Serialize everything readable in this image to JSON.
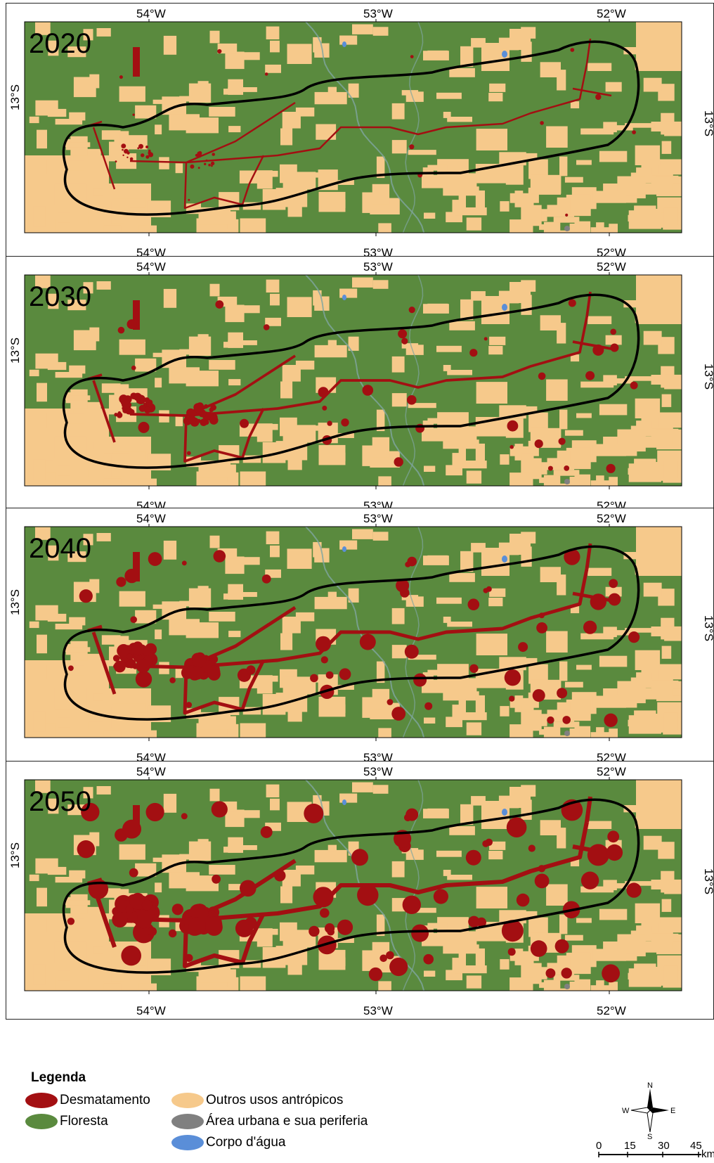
{
  "colors": {
    "forest": "#5a8a3e",
    "anthropic": "#f6c98b",
    "deforestation": "#a30f12",
    "urban": "#808080",
    "water": "#5a8ed8",
    "river": "#7fa5a0",
    "buffer": "#000000"
  },
  "panels": [
    {
      "year": "2020",
      "deforestation_level": 0
    },
    {
      "year": "2030",
      "deforestation_level": 1
    },
    {
      "year": "2040",
      "deforestation_level": 2
    },
    {
      "year": "2050",
      "deforestation_level": 3
    }
  ],
  "axes": {
    "lon_ticks": [
      "54°W",
      "53°W",
      "52°W"
    ],
    "lat_tick": "13°S"
  },
  "legend": {
    "title": "Legenda",
    "items": [
      {
        "label": "Desmatamento",
        "color": "#a30f12"
      },
      {
        "label": "Floresta",
        "color": "#5a8a3e"
      },
      {
        "label": "Outros usos antrópicos",
        "color": "#f6c98b"
      },
      {
        "label": "Área urbana e sua periferia",
        "color": "#808080"
      },
      {
        "label": "Corpo d'água",
        "color": "#5a8ed8"
      }
    ]
  },
  "compass": {
    "n": "N",
    "s": "S",
    "e": "E",
    "w": "W"
  },
  "scale": {
    "labels": [
      "0",
      "15",
      "30",
      "45"
    ],
    "unit": "km"
  }
}
